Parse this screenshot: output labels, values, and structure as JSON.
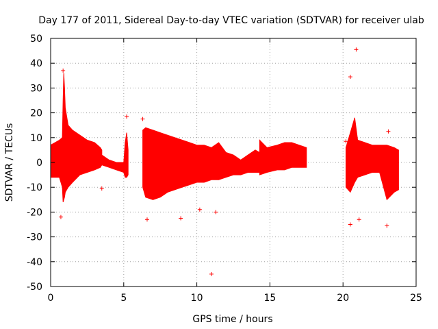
{
  "chart_data": {
    "type": "scatter",
    "title": "Day 177 of 2011, Sidereal Day-to-day VTEC variation (SDTVAR) for receiver ulab",
    "xlabel": "GPS time / hours",
    "ylabel": "SDTVAR / TECUs",
    "xlim": [
      0,
      25
    ],
    "ylim": [
      -50,
      50
    ],
    "x_ticks": [
      0,
      5,
      10,
      15,
      20,
      25
    ],
    "y_ticks": [
      -50,
      -40,
      -30,
      -20,
      -10,
      0,
      10,
      20,
      30,
      40,
      50
    ],
    "x_tick_labels": [
      "0",
      "5",
      "10",
      "15",
      "20",
      "25"
    ],
    "y_tick_labels": [
      "-50",
      "-40",
      "-30",
      "-20",
      "-10",
      "0",
      "10",
      "20",
      "30",
      "40",
      "50"
    ],
    "grid": true,
    "series_color": "#ff0000",
    "series": [
      {
        "name": "SDTVAR envelope",
        "segments": [
          {
            "x": [
              0.0,
              0.3,
              0.6,
              0.8,
              0.85,
              0.9,
              0.95,
              1.0,
              1.2,
              1.5,
              2.0,
              2.5,
              3.0,
              3.4,
              3.5
            ],
            "upper": [
              7,
              8,
              9,
              10,
              25,
              36,
              30,
              22,
              15,
              13,
              11,
              9,
              8,
              6,
              5
            ],
            "lower": [
              -6,
              -6,
              -6,
              -10,
              -16,
              -15,
              -14,
              -12,
              -10,
              -8,
              -5,
              -4,
              -3,
              -2,
              -1
            ]
          },
          {
            "x": [
              3.5,
              4.0,
              4.5,
              5.0,
              5.1,
              5.2,
              5.3
            ],
            "upper": [
              3,
              1,
              0,
              0,
              8,
              12,
              5
            ],
            "lower": [
              -1,
              -2,
              -3,
              -4,
              -6,
              -6,
              -5
            ]
          },
          {
            "x": [
              6.3,
              6.5,
              7.0,
              7.5,
              8.0,
              8.5,
              9.0,
              9.5,
              10.0,
              10.5,
              11.0,
              11.5,
              12.0,
              12.5,
              13.0,
              13.5,
              14.0,
              14.3
            ],
            "upper": [
              13,
              14,
              13,
              12,
              11,
              10,
              9,
              8,
              7,
              7,
              6,
              8,
              4,
              3,
              1,
              3,
              5,
              4
            ],
            "lower": [
              -10,
              -14,
              -15,
              -14,
              -12,
              -11,
              -10,
              -9,
              -8,
              -8,
              -7,
              -7,
              -6,
              -5,
              -5,
              -4,
              -4,
              -4
            ]
          },
          {
            "x": [
              14.3,
              14.8,
              15.5,
              16.0,
              16.5,
              17.0,
              17.5
            ],
            "upper": [
              9,
              6,
              7,
              8,
              8,
              7,
              6
            ],
            "lower": [
              -5,
              -4,
              -3,
              -3,
              -2,
              -2,
              -2
            ]
          },
          {
            "x": [
              20.2,
              20.5,
              20.8,
              21.0,
              21.5,
              22.0,
              22.5,
              23.0,
              23.5,
              23.8
            ],
            "upper": [
              6,
              12,
              18,
              9,
              8,
              7,
              7,
              7,
              6,
              5
            ],
            "lower": [
              -10,
              -12,
              -8,
              -6,
              -5,
              -4,
              -4,
              -15,
              -12,
              -11
            ]
          }
        ],
        "outliers": [
          {
            "x": 0.7,
            "y": -22
          },
          {
            "x": 0.85,
            "y": 37
          },
          {
            "x": 3.5,
            "y": -10.5
          },
          {
            "x": 5.2,
            "y": 18.5
          },
          {
            "x": 6.3,
            "y": 17.5
          },
          {
            "x": 6.6,
            "y": -23
          },
          {
            "x": 8.9,
            "y": -22.5
          },
          {
            "x": 10.2,
            "y": -19
          },
          {
            "x": 11.0,
            "y": -45
          },
          {
            "x": 11.3,
            "y": -20
          },
          {
            "x": 20.2,
            "y": 8.5
          },
          {
            "x": 20.5,
            "y": 34.5
          },
          {
            "x": 20.9,
            "y": 45.5
          },
          {
            "x": 20.5,
            "y": -25
          },
          {
            "x": 21.1,
            "y": -23
          },
          {
            "x": 23.0,
            "y": -25.5
          },
          {
            "x": 23.1,
            "y": 12.5
          }
        ]
      }
    ]
  }
}
